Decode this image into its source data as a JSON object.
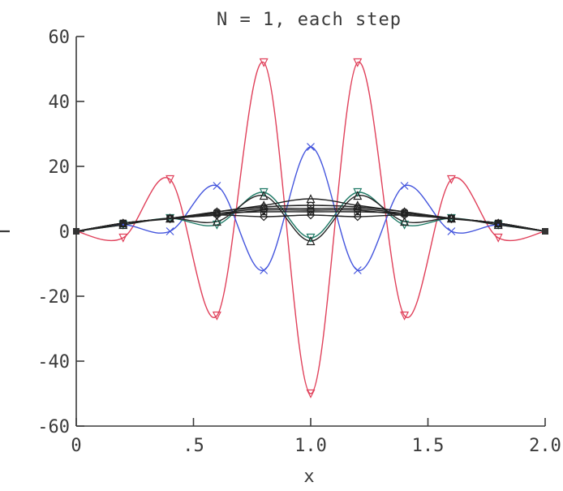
{
  "chart_data": {
    "type": "line",
    "title": "N = 1, each step",
    "xlabel": "x",
    "ylabel": "T",
    "xlim": [
      0,
      2.0
    ],
    "ylim": [
      -60,
      60
    ],
    "xticks": [
      0,
      0.5,
      1.0,
      1.5,
      2.0
    ],
    "xtick_labels": [
      "0",
      ".5",
      "1.0",
      "1.5",
      "2.0"
    ],
    "yticks": [
      -60,
      -40,
      -20,
      0,
      20,
      40,
      60
    ],
    "ytick_labels": [
      "-60",
      "-40",
      "-20",
      "0",
      "20",
      "40",
      "60"
    ],
    "grid": false,
    "x": [
      0,
      0.2,
      0.4,
      0.6,
      0.8,
      1.0,
      1.2,
      1.4,
      1.6,
      1.8,
      2.0
    ],
    "series": [
      {
        "color": "#e0405a",
        "marker": "triangle-down",
        "values": [
          0,
          -2,
          16,
          -26,
          52,
          -50,
          52,
          -26,
          16,
          -2,
          0
        ]
      },
      {
        "color": "#4455dd",
        "marker": "x",
        "values": [
          0,
          2,
          0,
          14,
          -12,
          26,
          -12,
          14,
          0,
          2,
          0
        ]
      },
      {
        "color": "#1f7a66",
        "marker": "triangle-down",
        "values": [
          0,
          2,
          4,
          2,
          12,
          -2,
          12,
          2,
          4,
          2,
          0
        ]
      },
      {
        "color": "#222222",
        "marker": "triangle",
        "values": [
          0,
          2,
          4,
          3,
          11,
          -3,
          11,
          3,
          4,
          2,
          0
        ]
      },
      {
        "color": "#222222",
        "marker": "triangle",
        "values": [
          0,
          2.5,
          4,
          6,
          8,
          10,
          8,
          6,
          4,
          2.5,
          0
        ]
      },
      {
        "color": "#222222",
        "marker": "circle",
        "values": [
          0,
          2.5,
          4,
          6,
          7.5,
          8,
          7.5,
          6,
          4,
          2.5,
          0
        ]
      },
      {
        "color": "#222222",
        "marker": "square",
        "values": [
          0,
          2.5,
          4,
          5.5,
          7,
          7,
          7,
          5.5,
          4,
          2.5,
          0
        ]
      },
      {
        "color": "#222222",
        "marker": "diamond",
        "values": [
          0,
          2.5,
          4,
          5,
          6.5,
          6.5,
          6.5,
          5,
          4,
          2.5,
          0
        ]
      },
      {
        "color": "#222222",
        "marker": "square",
        "values": [
          0,
          2.5,
          4,
          5.5,
          6,
          6,
          6,
          5.5,
          4,
          2.5,
          0
        ]
      },
      {
        "color": "#222222",
        "marker": "diamond",
        "values": [
          0,
          2.5,
          3.8,
          5,
          4.5,
          5,
          4.5,
          5,
          3.8,
          2.5,
          0
        ]
      }
    ]
  }
}
